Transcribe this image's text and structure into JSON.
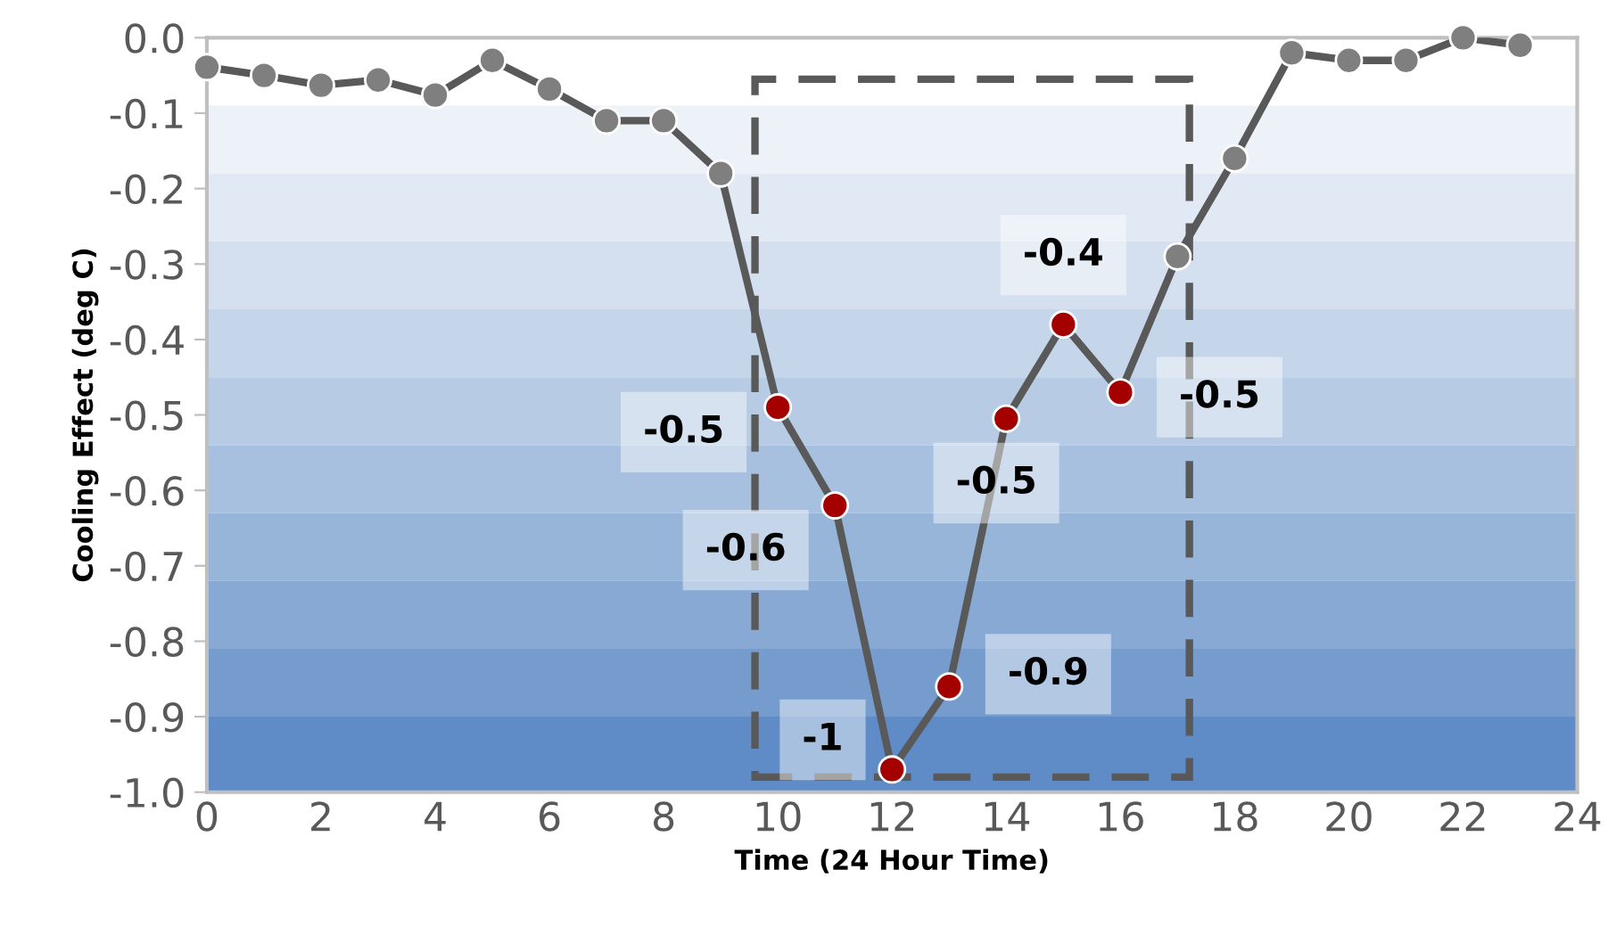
{
  "chart_data": {
    "type": "line",
    "xlabel": "Time (24 Hour Time)",
    "ylabel": "Cooling Effect (deg C)",
    "x": [
      0,
      1,
      2,
      3,
      4,
      5,
      6,
      7,
      8,
      9,
      10,
      11,
      12,
      13,
      14,
      15,
      16,
      17,
      18,
      19,
      20,
      21,
      22,
      23
    ],
    "series": [
      {
        "color": "#595959",
        "colors": [
          "#7f7f7f",
          "#7f7f7f",
          "#7f7f7f",
          "#7f7f7f",
          "#7f7f7f",
          "#7f7f7f",
          "#7f7f7f",
          "#7f7f7f",
          "#7f7f7f",
          "#7f7f7f",
          "#a50000",
          "#a50000",
          "#a50000",
          "#a50000",
          "#a50000",
          "#a50000",
          "#a50000",
          "#7f7f7f",
          "#7f7f7f",
          "#7f7f7f",
          "#7f7f7f",
          "#7f7f7f",
          "#7f7f7f",
          "#7f7f7f"
        ],
        "values": [
          -0.039,
          -0.05,
          -0.063,
          -0.056,
          -0.076,
          -0.03,
          -0.068,
          -0.11,
          -0.11,
          -0.18,
          -0.49,
          -0.62,
          -0.97,
          -0.86,
          -0.505,
          -0.38,
          -0.47,
          -0.29,
          -0.16,
          -0.02,
          -0.03,
          -0.03,
          0.0,
          -0.01
        ],
        "value_labels": [
          null,
          null,
          null,
          null,
          null,
          null,
          null,
          null,
          null,
          null,
          "-0.5",
          "-0.6",
          "-1",
          "-0.9",
          "-0.5",
          "-0.4",
          "-0.5",
          null,
          null,
          null,
          null,
          null,
          null,
          null
        ]
      }
    ],
    "marker": "circle",
    "line_style": "solid",
    "xlim": [
      0,
      24
    ],
    "xticks": [
      0,
      2,
      4,
      6,
      8,
      10,
      12,
      14,
      16,
      18,
      20,
      22,
      24
    ],
    "ylim": [
      -1.0,
      0.0
    ],
    "yticks": [
      {
        "value": -1.0,
        "label": "-1.0"
      },
      {
        "value": -0.9,
        "label": "-0.9"
      },
      {
        "value": -0.8,
        "label": "-0.8"
      },
      {
        "value": -0.7,
        "label": "-0.7"
      },
      {
        "value": -0.6,
        "label": "-0.6"
      },
      {
        "value": -0.5,
        "label": "-0.5"
      },
      {
        "value": -0.4,
        "label": "-0.4"
      },
      {
        "value": -0.3,
        "label": "-0.3"
      },
      {
        "value": -0.2,
        "label": "-0.2"
      },
      {
        "value": -0.1,
        "label": "-0.1"
      },
      {
        "value": 0.0,
        "label": "0.0"
      }
    ],
    "grid": false,
    "legend": false,
    "bands": [
      {
        "axis": "y",
        "from": -0.09,
        "to": -0.18,
        "color": "#edf2f9"
      },
      {
        "axis": "y",
        "from": -0.18,
        "to": -0.27,
        "color": "#e1e9f4"
      },
      {
        "axis": "y",
        "from": -0.27,
        "to": -0.36,
        "color": "#d4e0ef"
      },
      {
        "axis": "y",
        "from": -0.36,
        "to": -0.45,
        "color": "#c6d6ea"
      },
      {
        "axis": "y",
        "from": -0.45,
        "to": -0.54,
        "color": "#b7cbe5"
      },
      {
        "axis": "y",
        "from": -0.54,
        "to": -0.63,
        "color": "#a7c0df"
      },
      {
        "axis": "y",
        "from": -0.63,
        "to": -0.72,
        "color": "#97b4d9"
      },
      {
        "axis": "y",
        "from": -0.72,
        "to": -0.81,
        "color": "#87a9d4"
      },
      {
        "axis": "y",
        "from": -0.81,
        "to": -0.9,
        "color": "#759ccd"
      },
      {
        "axis": "y",
        "from": -0.9,
        "to": -1.0,
        "color": "#5f8cc6"
      }
    ]
  }
}
